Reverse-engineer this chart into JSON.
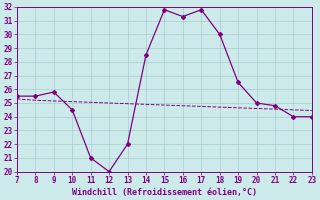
{
  "x": [
    7,
    8,
    9,
    10,
    11,
    12,
    13,
    14,
    15,
    16,
    17,
    18,
    19,
    20,
    21,
    22,
    23
  ],
  "y_line1": [
    25.5,
    25.5,
    25.8,
    24.5,
    21.0,
    20.0,
    22.0,
    28.5,
    31.8,
    31.3,
    31.8,
    30.0,
    26.5,
    25.0,
    24.8,
    24.0,
    24.0
  ],
  "y_line2": [
    25.3,
    25.2,
    25.15,
    25.1,
    25.05,
    25.0,
    24.95,
    24.9,
    24.85,
    24.8,
    24.75,
    24.7,
    24.65,
    24.6,
    24.55,
    24.5,
    24.45
  ],
  "line_color": "#800080",
  "bg_color": "#cceaea",
  "grid_color": "#aacccc",
  "xlabel": "Windchill (Refroidissement éolien,°C)",
  "ylim": [
    20,
    32
  ],
  "xlim": [
    7,
    23
  ],
  "yticks": [
    20,
    21,
    22,
    23,
    24,
    25,
    26,
    27,
    28,
    29,
    30,
    31,
    32
  ],
  "xticks": [
    7,
    8,
    9,
    10,
    11,
    12,
    13,
    14,
    15,
    16,
    17,
    18,
    19,
    20,
    21,
    22,
    23
  ],
  "tick_fontsize": 5.5,
  "xlabel_fontsize": 6.0
}
